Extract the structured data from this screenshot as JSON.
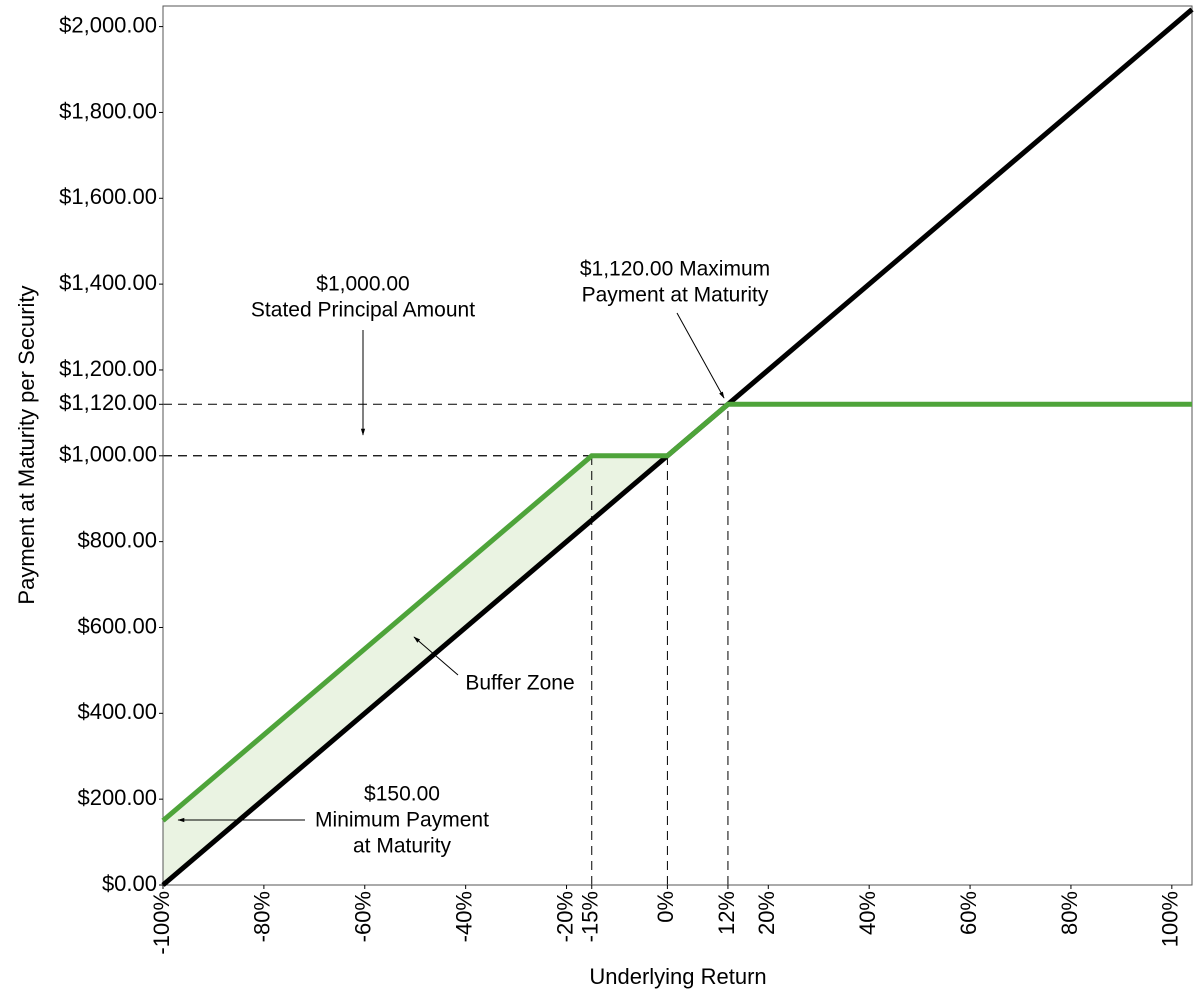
{
  "chart_data": {
    "type": "line",
    "x_label": "Underlying Return",
    "y_label": "Payment at Maturity per Security",
    "xlim": [
      -100,
      104
    ],
    "ylim": [
      0,
      2048
    ],
    "xticks": [
      {
        "value": -100,
        "label": "-100%"
      },
      {
        "value": -80,
        "label": "-80%"
      },
      {
        "value": -60,
        "label": "-60%"
      },
      {
        "value": -40,
        "label": "-40%"
      },
      {
        "value": -20,
        "label": "-20%"
      },
      {
        "value": -15,
        "label": "-15%"
      },
      {
        "value": 0,
        "label": "0%"
      },
      {
        "value": 12,
        "label": "12%"
      },
      {
        "value": 20,
        "label": "20%"
      },
      {
        "value": 40,
        "label": "40%"
      },
      {
        "value": 60,
        "label": "60%"
      },
      {
        "value": 80,
        "label": "80%"
      },
      {
        "value": 100,
        "label": "100%"
      }
    ],
    "yticks": [
      {
        "value": 0,
        "label": "$0.00"
      },
      {
        "value": 200,
        "label": "$200.00"
      },
      {
        "value": 400,
        "label": "$400.00"
      },
      {
        "value": 600,
        "label": "$600.00"
      },
      {
        "value": 800,
        "label": "$800.00"
      },
      {
        "value": 1000,
        "label": "$1,000.00"
      },
      {
        "value": 1120,
        "label": "$1,120.00"
      },
      {
        "value": 1200,
        "label": "$1,200.00"
      },
      {
        "value": 1400,
        "label": "$1,400.00"
      },
      {
        "value": 1600,
        "label": "$1,600.00"
      },
      {
        "value": 1800,
        "label": "$1,800.00"
      },
      {
        "value": 2000,
        "label": "$2,000.00"
      }
    ],
    "series": [
      {
        "color": "#000000",
        "x": [
          -100,
          104
        ],
        "values": [
          0,
          2040
        ]
      },
      {
        "color": "#4ea43a",
        "x": [
          -100,
          -15,
          0,
          12,
          104
        ],
        "values": [
          150,
          1000,
          1000,
          1120,
          1120
        ]
      }
    ],
    "buffer_fill": "#eaf3e2",
    "reference_points": [
      {
        "x": -15,
        "y": 1000
      },
      {
        "x": 0,
        "y": 1000
      },
      {
        "x": 12,
        "y": 1120
      }
    ],
    "annotations": [
      {
        "lines": [
          "$1,000.00",
          "Stated Principal Amount"
        ]
      },
      {
        "lines": [
          "$1,120.00 Maximum",
          "Payment at Maturity"
        ]
      },
      {
        "lines": [
          "Buffer Zone"
        ]
      },
      {
        "lines": [
          "$150.00",
          "Minimum Payment",
          "at Maturity"
        ]
      }
    ]
  }
}
